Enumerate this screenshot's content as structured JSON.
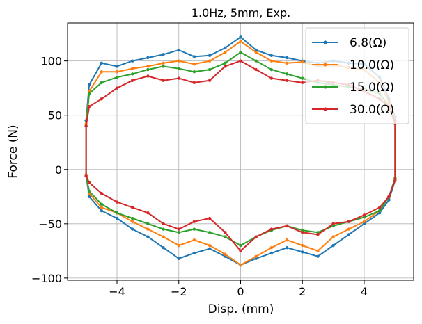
{
  "chart_data": {
    "type": "line",
    "title": "1.0Hz, 5mm, Exp.",
    "xlabel": "Disp. (mm)",
    "ylabel": "Force (N)",
    "xlim": [
      -5.6,
      5.6
    ],
    "ylim": [
      -102,
      135
    ],
    "xticks": [
      -4,
      -2,
      0,
      2,
      4
    ],
    "xtick_labels": [
      "−4",
      "−2",
      "0",
      "2",
      "4"
    ],
    "yticks": [
      -100,
      -50,
      0,
      50,
      100
    ],
    "ytick_labels": [
      "−100",
      "−50",
      "0",
      "50",
      "100"
    ],
    "grid": true,
    "legend_position": "top-right",
    "markers": "small-dots",
    "series": [
      {
        "name": "6.8(Ω)",
        "color": "#1f77b4",
        "upper": {
          "x": [
            -5.0,
            -4.9,
            -4.5,
            -4.0,
            -3.5,
            -3.0,
            -2.5,
            -2.0,
            -1.5,
            -1.0,
            -0.5,
            0.0,
            0.5,
            1.0,
            1.5,
            2.0,
            2.5,
            3.0,
            3.5,
            4.0,
            4.5,
            4.8,
            5.0
          ],
          "y": [
            45,
            78,
            98,
            95,
            100,
            103,
            106,
            110,
            104,
            105,
            112,
            122,
            110,
            105,
            103,
            100,
            98,
            100,
            98,
            97,
            85,
            65,
            48
          ]
        },
        "lower": {
          "x": [
            -5.0,
            -4.9,
            -4.5,
            -4.0,
            -3.5,
            -3.0,
            -2.5,
            -2.0,
            -1.5,
            -1.0,
            -0.5,
            0.0,
            0.5,
            1.0,
            1.5,
            2.0,
            2.5,
            3.0,
            3.5,
            4.0,
            4.5,
            4.8,
            5.0
          ],
          "y": [
            -5,
            -25,
            -38,
            -45,
            -55,
            -62,
            -72,
            -82,
            -77,
            -73,
            -80,
            -88,
            -82,
            -77,
            -72,
            -76,
            -80,
            -70,
            -60,
            -50,
            -40,
            -28,
            -10
          ]
        }
      },
      {
        "name": "10.0(Ω)",
        "color": "#ff7f0e",
        "upper": {
          "x": [
            -5.0,
            -4.9,
            -4.5,
            -4.0,
            -3.5,
            -3.0,
            -2.5,
            -2.0,
            -1.5,
            -1.0,
            -0.5,
            0.0,
            0.5,
            1.0,
            1.5,
            2.0,
            2.5,
            3.0,
            3.5,
            4.0,
            4.5,
            4.8,
            5.0
          ],
          "y": [
            42,
            72,
            90,
            90,
            93,
            95,
            98,
            100,
            97,
            100,
            108,
            118,
            108,
            100,
            98,
            99,
            95,
            96,
            94,
            92,
            80,
            62,
            45
          ]
        },
        "lower": {
          "x": [
            -5.0,
            -4.9,
            -4.5,
            -4.0,
            -3.5,
            -3.0,
            -2.5,
            -2.0,
            -1.5,
            -1.0,
            -0.5,
            0.0,
            0.5,
            1.0,
            1.5,
            2.0,
            2.5,
            3.0,
            3.5,
            4.0,
            4.5,
            4.8,
            5.0
          ],
          "y": [
            -5,
            -22,
            -35,
            -40,
            -48,
            -55,
            -62,
            -70,
            -65,
            -70,
            -78,
            -88,
            -80,
            -72,
            -65,
            -70,
            -75,
            -62,
            -55,
            -48,
            -38,
            -25,
            -8
          ]
        }
      },
      {
        "name": "15.0(Ω)",
        "color": "#2ca02c",
        "upper": {
          "x": [
            -5.0,
            -4.9,
            -4.5,
            -4.0,
            -3.5,
            -3.0,
            -2.5,
            -2.0,
            -1.5,
            -1.0,
            -0.5,
            0.0,
            0.5,
            1.0,
            1.5,
            2.0,
            2.5,
            3.0,
            3.5,
            4.0,
            4.5,
            4.8,
            5.0
          ],
          "y": [
            40,
            70,
            80,
            85,
            88,
            92,
            95,
            93,
            90,
            92,
            98,
            108,
            100,
            92,
            88,
            84,
            80,
            78,
            76,
            74,
            70,
            58,
            42
          ]
        },
        "lower": {
          "x": [
            -5.0,
            -4.9,
            -4.5,
            -4.0,
            -3.5,
            -3.0,
            -2.5,
            -2.0,
            -1.5,
            -1.0,
            -0.5,
            0.0,
            0.5,
            1.0,
            1.5,
            2.0,
            2.5,
            3.0,
            3.5,
            4.0,
            4.5,
            4.8,
            5.0
          ],
          "y": [
            -6,
            -20,
            -32,
            -40,
            -45,
            -50,
            -55,
            -58,
            -55,
            -58,
            -62,
            -70,
            -62,
            -56,
            -52,
            -56,
            -58,
            -52,
            -48,
            -44,
            -38,
            -25,
            -8
          ]
        }
      },
      {
        "name": "30.0(Ω)",
        "color": "#d62728",
        "upper": {
          "x": [
            -5.0,
            -4.9,
            -4.5,
            -4.0,
            -3.5,
            -3.0,
            -2.5,
            -2.0,
            -1.5,
            -1.0,
            -0.5,
            0.0,
            0.5,
            1.0,
            1.5,
            2.0,
            2.5,
            3.0,
            3.5,
            4.0,
            4.5,
            4.8,
            5.0
          ],
          "y": [
            40,
            58,
            65,
            75,
            82,
            86,
            82,
            84,
            80,
            82,
            95,
            100,
            92,
            84,
            82,
            80,
            82,
            80,
            78,
            72,
            65,
            58,
            45
          ]
        },
        "lower": {
          "x": [
            -5.0,
            -4.9,
            -4.5,
            -4.0,
            -3.5,
            -3.0,
            -2.5,
            -2.0,
            -1.5,
            -1.0,
            -0.5,
            0.0,
            0.5,
            1.0,
            1.5,
            2.0,
            2.5,
            3.0,
            3.5,
            4.0,
            4.5,
            4.8,
            5.0
          ],
          "y": [
            -6,
            -12,
            -22,
            -30,
            -35,
            -40,
            -50,
            -55,
            -48,
            -45,
            -58,
            -75,
            -62,
            -55,
            -52,
            -58,
            -60,
            -50,
            -48,
            -42,
            -35,
            -25,
            -10
          ]
        }
      }
    ]
  }
}
